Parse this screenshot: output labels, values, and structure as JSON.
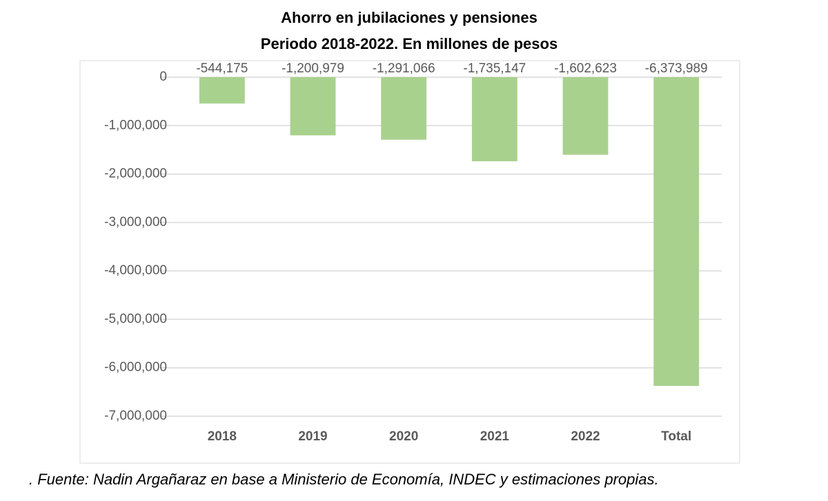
{
  "chart_data": {
    "type": "bar",
    "title": "Ahorro en jubilaciones y pensiones",
    "subtitle": "Periodo 2018-2022. En millones de pesos",
    "categories": [
      "2018",
      "2019",
      "2020",
      "2021",
      "2022",
      "Total"
    ],
    "values": [
      -544175,
      -1200979,
      -1291066,
      -1735147,
      -1602623,
      -6373989
    ],
    "value_labels": [
      "-544,175",
      "-1,200,979",
      "-1,291,066",
      "-1,735,147",
      "-1,602,623",
      "-6,373,989"
    ],
    "color": "#a9d18e",
    "ylim": [
      -7000000,
      0
    ],
    "yticks": [
      0,
      {
        "value": -1000000,
        "label": "-1,000,000"
      },
      {
        "value": -2000000,
        "label": "-2,000,000"
      },
      {
        "value": -3000000,
        "label": "-3,000,000"
      },
      {
        "value": -4000000,
        "label": "-4,000,000"
      },
      {
        "value": -5000000,
        "label": "-5,000,000"
      },
      {
        "value": -6000000,
        "label": "-6,000,000"
      },
      {
        "value": -7000000,
        "label": "-7,000,000"
      }
    ],
    "grid": true,
    "source": ". Fuente: Nadin Argañaraz en base a Ministerio de Economía, INDEC y estimaciones propias."
  }
}
